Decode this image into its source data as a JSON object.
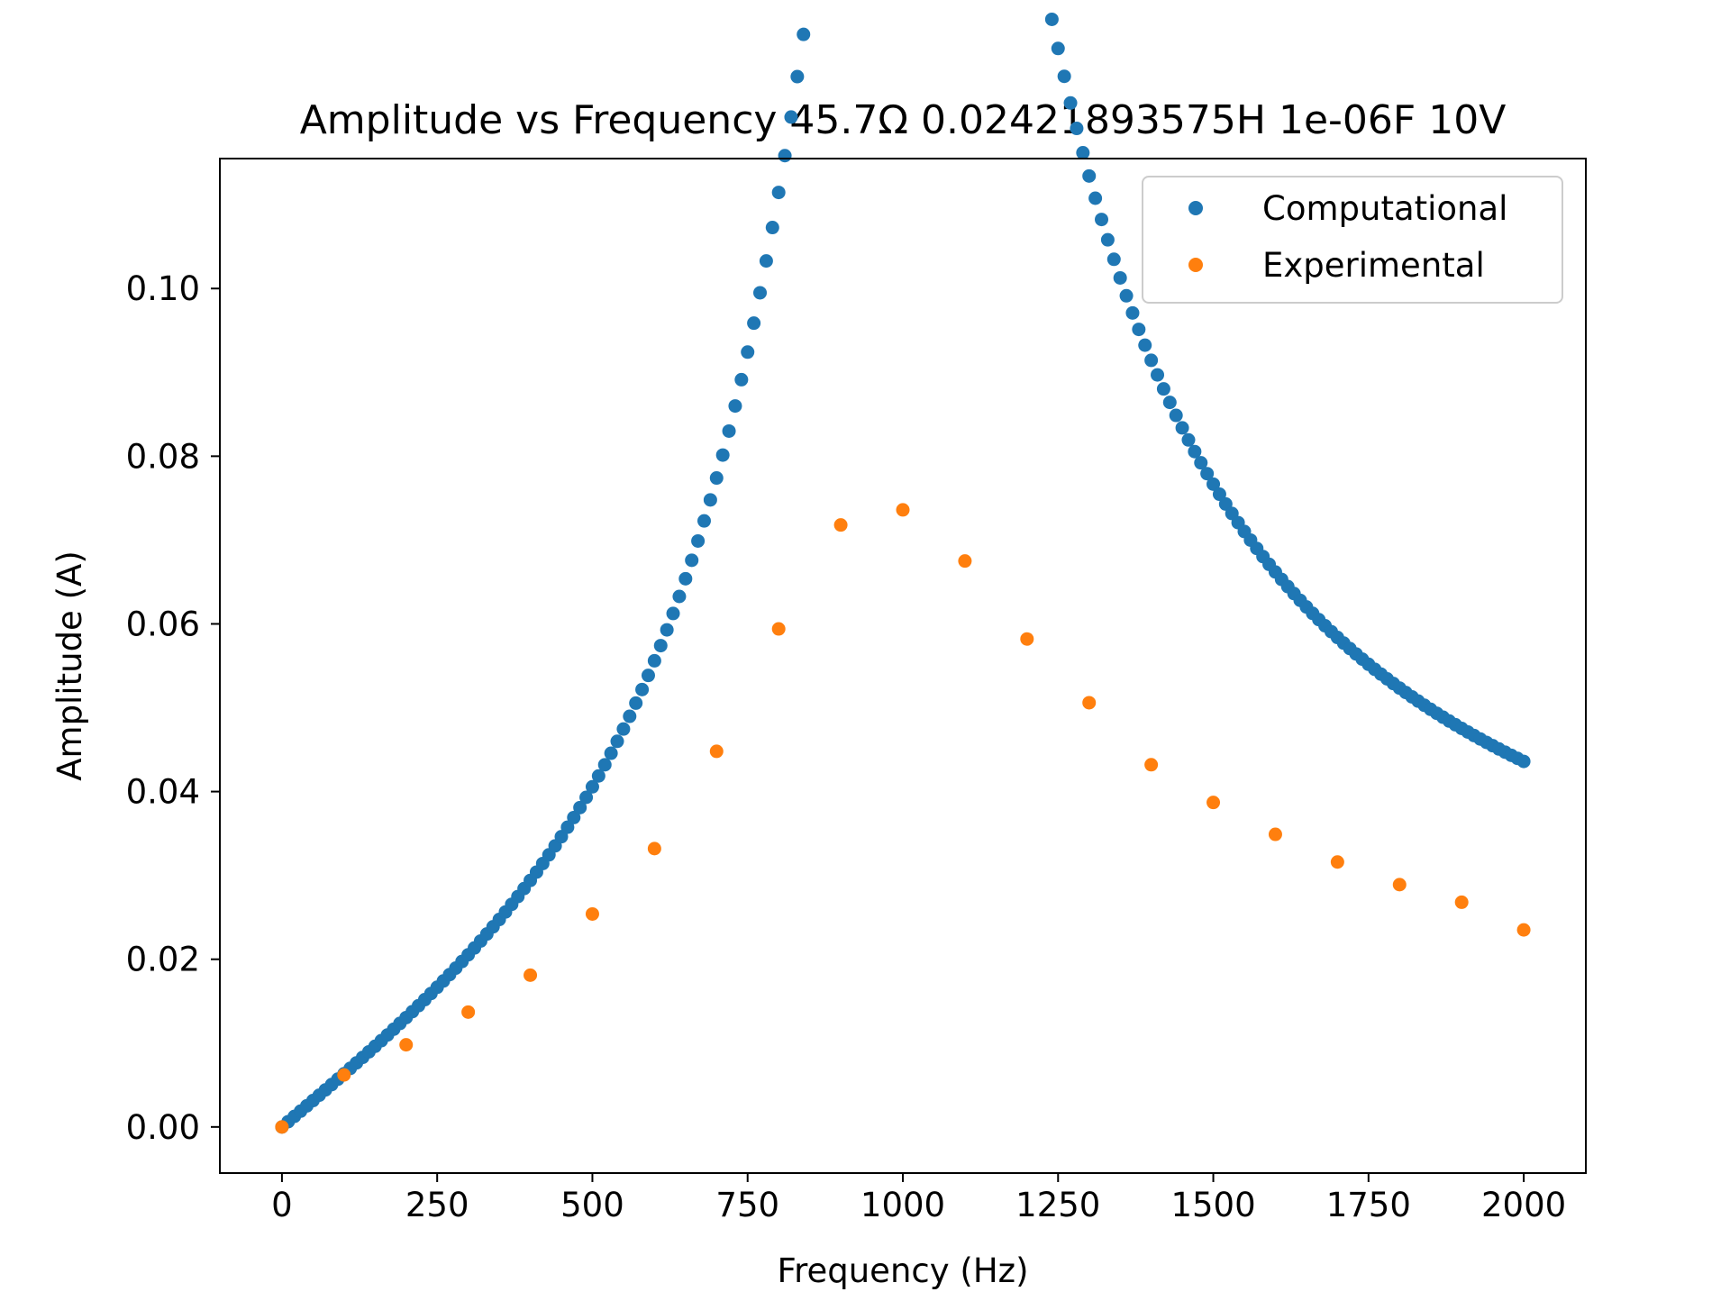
{
  "chart_data": {
    "type": "scatter",
    "title": "Amplitude vs Frequency 45.7Ω 0.02421893575H 1e-06F 10V",
    "xlabel": "Frequency (Hz)",
    "ylabel": "Amplitude (A)",
    "xlim": [
      -100,
      2100
    ],
    "ylim": [
      -0.0055,
      0.1155
    ],
    "xticks": [
      0,
      250,
      500,
      750,
      1000,
      1250,
      1500,
      1750,
      2000
    ],
    "xtick_labels": [
      "0",
      "250",
      "500",
      "750",
      "1000",
      "1250",
      "1500",
      "1750",
      "2000"
    ],
    "yticks": [
      0.0,
      0.02,
      0.04,
      0.06,
      0.08,
      0.1
    ],
    "ytick_labels": [
      "0.00",
      "0.02",
      "0.04",
      "0.06",
      "0.08",
      "0.10"
    ],
    "grid": false,
    "legend_position": "top-right",
    "series": [
      {
        "name": "Computational",
        "color": "#1f77b4",
        "model": {
          "formula": "V / sqrt(R^2 + (2*pi*f*L - 1/(2*pi*f*C))^2)",
          "R": 45.7,
          "L": 0.02421893575,
          "C": 1e-06,
          "V": 10,
          "f_start": 0,
          "f_end": 2000,
          "f_step": 10
        }
      },
      {
        "name": "Experimental",
        "color": "#ff7f0e",
        "x": [
          0,
          100,
          200,
          300,
          400,
          500,
          600,
          700,
          800,
          900,
          1000,
          1100,
          1200,
          1300,
          1400,
          1500,
          1600,
          1700,
          1800,
          1900,
          2000
        ],
        "y": [
          0.0,
          0.0062,
          0.0098,
          0.0137,
          0.0181,
          0.0254,
          0.0332,
          0.0448,
          0.0594,
          0.0718,
          0.0736,
          0.0675,
          0.0582,
          0.0506,
          0.0432,
          0.0387,
          0.0349,
          0.0316,
          0.0289,
          0.0268,
          0.0235
        ]
      }
    ]
  }
}
